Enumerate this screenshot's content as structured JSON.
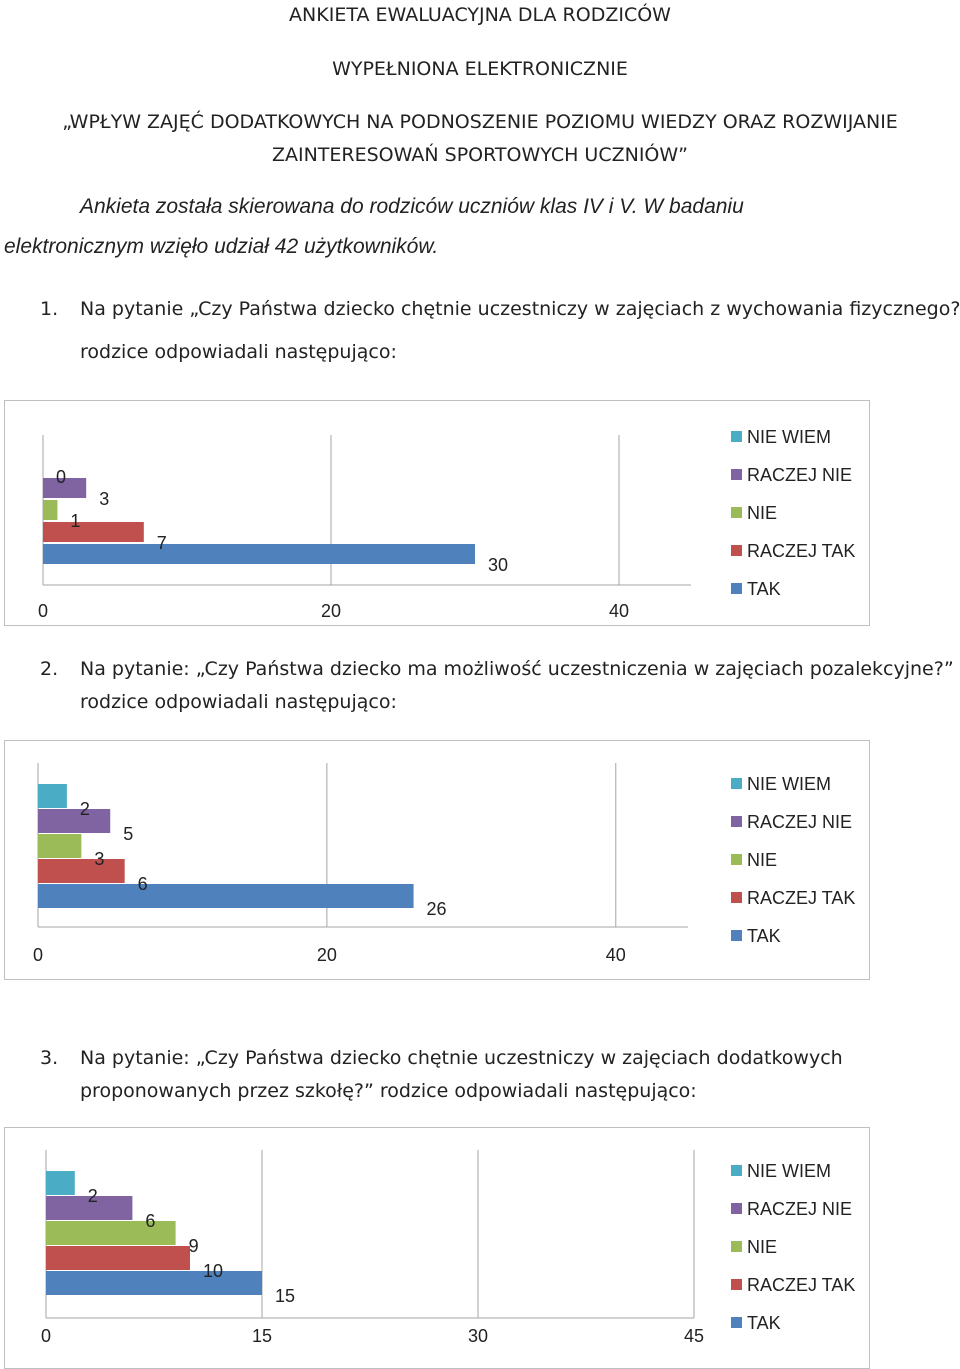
{
  "header": {
    "title": "ANKIETA EWALUACYJNA DLA RODZICÓW",
    "subtitle": "WYPEŁNIONA ELEKTRONICZNIE",
    "project_line1": "„WPŁYW ZAJĘĆ DODATKOWYCH NA PODNOSZENIE POZIOMU WIEDZY ORAZ ROZWIJANIE",
    "project_line2": "ZAINTERESOWAŃ SPORTOWYCH UCZNIÓW”"
  },
  "intro": {
    "line1": "Ankieta została skierowana do rodziców uczniów klas IV i V. W badaniu",
    "line2": "elektronicznym wzięło udział 42 użytkowników."
  },
  "questions": [
    {
      "number": "1.",
      "line1": "Na pytanie „Czy Państwa dziecko chętnie uczestniczy  w zajęciach z wychowania fizycznego?”",
      "line2": "rodzice odpowiadali następująco:"
    },
    {
      "number": "2.",
      "line1": "Na pytanie: „Czy  Państwa dziecko ma możliwość uczestniczenia w zajęciach pozalekcyjne?”",
      "line2": "rodzice odpowiadali następująco:"
    },
    {
      "number": "3.",
      "line1": "Na pytanie: „Czy Państwa dziecko chętnie uczestniczy w zajęciach dodatkowych",
      "line2": "proponowanych przez szkołę?” rodzice odpowiadali następująco:"
    }
  ],
  "chart_data": [
    {
      "type": "bar",
      "orientation": "horizontal",
      "categories": [
        "TAK",
        "RACZEJ TAK",
        "NIE",
        "RACZEJ NIE",
        "NIE WIEM"
      ],
      "values": [
        30,
        7,
        1,
        3,
        0
      ],
      "colors": [
        "#4f81bd",
        "#c0504d",
        "#9bbb59",
        "#8064a2",
        "#4bacc6"
      ],
      "legend": [
        "NIE WIEM",
        "RACZEJ NIE",
        "NIE",
        "RACZEJ TAK",
        "TAK"
      ],
      "legend_position": "right",
      "xlim": [
        0,
        45
      ],
      "ticks": [
        "0",
        "20",
        "40"
      ],
      "grid": true
    },
    {
      "type": "bar",
      "orientation": "horizontal",
      "categories": [
        "TAK",
        "RACZEJ TAK",
        "NIE",
        "RACZEJ NIE",
        "NIE WIEM"
      ],
      "values": [
        26,
        6,
        3,
        5,
        2
      ],
      "colors": [
        "#4f81bd",
        "#c0504d",
        "#9bbb59",
        "#8064a2",
        "#4bacc6"
      ],
      "legend": [
        "NIE WIEM",
        "RACZEJ NIE",
        "NIE",
        "RACZEJ TAK",
        "TAK"
      ],
      "legend_position": "right",
      "xlim": [
        0,
        45
      ],
      "ticks": [
        "0",
        "20",
        "40"
      ],
      "grid": true
    },
    {
      "type": "bar",
      "orientation": "horizontal",
      "categories": [
        "TAK",
        "RACZEJ TAK",
        "NIE",
        "RACZEJ NIE",
        "NIE WIEM"
      ],
      "values": [
        15,
        10,
        9,
        6,
        2
      ],
      "colors": [
        "#4f81bd",
        "#c0504d",
        "#9bbb59",
        "#8064a2",
        "#4bacc6"
      ],
      "legend": [
        "NIE WIEM",
        "RACZEJ NIE",
        "NIE",
        "RACZEJ TAK",
        "TAK"
      ],
      "legend_position": "right",
      "xlim": [
        0,
        45
      ],
      "ticks": [
        "0",
        "15",
        "30",
        "45"
      ],
      "grid": true
    }
  ]
}
